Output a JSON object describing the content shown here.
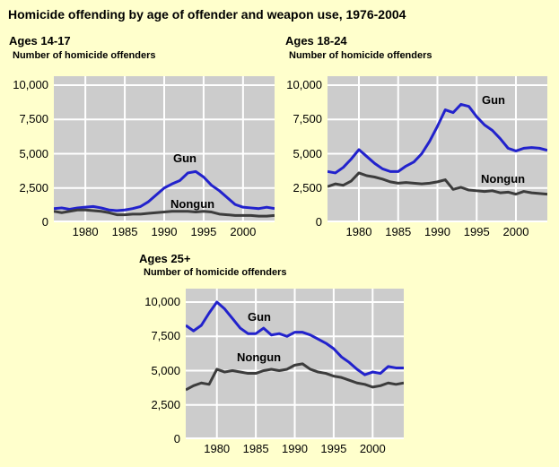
{
  "title": "Homicide offending by age of offender and weapon use, 1976-2004",
  "colors": {
    "background": "#FFFFCC",
    "plot_background": "#CCCCCC",
    "gridline": "#FFFFFF",
    "gun_line": "#2222CC",
    "nongun_line": "#3C3C3C",
    "text": "#000000"
  },
  "chart_data": [
    {
      "type": "line",
      "title": "Ages 14-17",
      "subtitle": "Number of homicide offenders",
      "ylabel": "Number of homicide offenders",
      "ylim": [
        0,
        10000
      ],
      "yticks": [
        0,
        2500,
        5000,
        7500,
        10000
      ],
      "ytick_labels": [
        "0",
        "2,500",
        "5,000",
        "7,500",
        "10,000"
      ],
      "xticks": [
        1980,
        1985,
        1990,
        1995,
        2000
      ],
      "grid": true,
      "legend_position": "inline-labels",
      "x": [
        1976,
        1977,
        1978,
        1979,
        1980,
        1981,
        1982,
        1983,
        1984,
        1985,
        1986,
        1987,
        1988,
        1989,
        1990,
        1991,
        1992,
        1993,
        1994,
        1995,
        1996,
        1997,
        1998,
        1999,
        2000,
        2001,
        2002,
        2003,
        2004
      ],
      "series": [
        {
          "name": "Gun",
          "values": [
            1000,
            1050,
            950,
            1050,
            1100,
            1150,
            1050,
            900,
            850,
            900,
            1000,
            1150,
            1500,
            2000,
            2500,
            2800,
            3050,
            3600,
            3700,
            3300,
            2700,
            2300,
            1800,
            1300,
            1100,
            1050,
            1000,
            1100,
            1000
          ]
        },
        {
          "name": "Nongun",
          "values": [
            800,
            700,
            800,
            900,
            900,
            850,
            800,
            700,
            550,
            550,
            600,
            600,
            650,
            700,
            750,
            800,
            800,
            800,
            750,
            800,
            750,
            600,
            550,
            500,
            500,
            500,
            450,
            450,
            500
          ]
        }
      ]
    },
    {
      "type": "line",
      "title": "Ages 18-24",
      "subtitle": "Number of homicide offenders",
      "ylabel": "Number of homicide offenders",
      "ylim": [
        0,
        10000
      ],
      "yticks": [
        0,
        2500,
        5000,
        7500,
        10000
      ],
      "ytick_labels": [
        "0",
        "2,500",
        "5,000",
        "7,500",
        "10,000"
      ],
      "xticks": [
        1980,
        1985,
        1990,
        1995,
        2000
      ],
      "grid": true,
      "legend_position": "inline-labels",
      "x": [
        1976,
        1977,
        1978,
        1979,
        1980,
        1981,
        1982,
        1983,
        1984,
        1985,
        1986,
        1987,
        1988,
        1989,
        1990,
        1991,
        1992,
        1993,
        1994,
        1995,
        1996,
        1997,
        1998,
        1999,
        2000,
        2001,
        2002,
        2003,
        2004
      ],
      "series": [
        {
          "name": "Gun",
          "values": [
            3700,
            3600,
            4000,
            4600,
            5300,
            4800,
            4300,
            3900,
            3700,
            3700,
            4100,
            4400,
            5000,
            5900,
            7000,
            8200,
            8000,
            8600,
            8450,
            7700,
            7100,
            6700,
            6100,
            5400,
            5200,
            5400,
            5450,
            5400,
            5250
          ]
        },
        {
          "name": "Nongun",
          "values": [
            2600,
            2800,
            2700,
            3000,
            3600,
            3400,
            3300,
            3150,
            2950,
            2850,
            2900,
            2850,
            2800,
            2850,
            2950,
            3100,
            2400,
            2550,
            2350,
            2300,
            2250,
            2300,
            2150,
            2200,
            2050,
            2250,
            2150,
            2100,
            2050
          ]
        }
      ]
    },
    {
      "type": "line",
      "title": "Ages 25+",
      "subtitle": "Number of homicide offenders",
      "ylabel": "Number of homicide offenders",
      "ylim": [
        0,
        10000
      ],
      "yticks": [
        0,
        2500,
        5000,
        7500,
        10000
      ],
      "ytick_labels": [
        "0",
        "2,500",
        "5,000",
        "7,500",
        "10,000"
      ],
      "xticks": [
        1980,
        1985,
        1990,
        1995,
        2000
      ],
      "grid": true,
      "legend_position": "inline-labels",
      "x": [
        1976,
        1977,
        1978,
        1979,
        1980,
        1981,
        1982,
        1983,
        1984,
        1985,
        1986,
        1987,
        1988,
        1989,
        1990,
        1991,
        1992,
        1993,
        1994,
        1995,
        1996,
        1997,
        1998,
        1999,
        2000,
        2001,
        2002,
        2003,
        2004
      ],
      "series": [
        {
          "name": "Gun",
          "values": [
            8300,
            7900,
            8300,
            9200,
            10000,
            9500,
            8800,
            8100,
            7700,
            7700,
            8100,
            7600,
            7700,
            7500,
            7800,
            7800,
            7600,
            7300,
            7000,
            6600,
            6000,
            5600,
            5100,
            4700,
            4900,
            4800,
            5300,
            5200,
            5200
          ]
        },
        {
          "name": "Nongun",
          "values": [
            3600,
            3900,
            4100,
            4000,
            5100,
            4900,
            5000,
            4900,
            4800,
            4800,
            5000,
            5100,
            5000,
            5100,
            5400,
            5500,
            5100,
            4900,
            4800,
            4600,
            4500,
            4300,
            4100,
            4000,
            3800,
            3900,
            4100,
            4000,
            4100
          ]
        }
      ]
    }
  ]
}
